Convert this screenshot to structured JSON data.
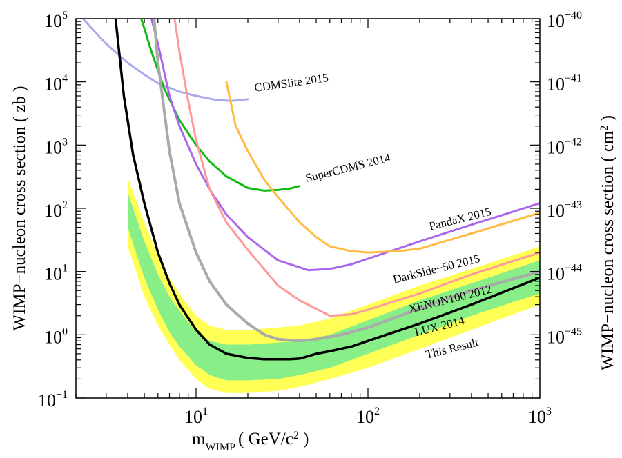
{
  "chart_data": {
    "type": "line",
    "xscale": "log",
    "yscale": "log",
    "xlim": [
      2,
      1000
    ],
    "ylim": [
      0.1,
      100000
    ],
    "grid": false,
    "x_ticks": [
      {
        "value": 10,
        "base": "10",
        "exp": "1"
      },
      {
        "value": 100,
        "base": "10",
        "exp": "2"
      },
      {
        "value": 1000,
        "base": "10",
        "exp": "3"
      }
    ],
    "y_ticks": [
      {
        "value": 0.1,
        "base": "10",
        "exp": "−1"
      },
      {
        "value": 1,
        "base": "10",
        "exp": "0"
      },
      {
        "value": 10,
        "base": "10",
        "exp": "1"
      },
      {
        "value": 100,
        "base": "10",
        "exp": "2"
      },
      {
        "value": 1000,
        "base": "10",
        "exp": "3"
      },
      {
        "value": 10000,
        "base": "10",
        "exp": "4"
      },
      {
        "value": 100000,
        "base": "10",
        "exp": "5"
      }
    ],
    "y2_ticks": [
      {
        "value": 1,
        "base": "10",
        "exp": "−45"
      },
      {
        "value": 10,
        "base": "10",
        "exp": "−44"
      },
      {
        "value": 100,
        "base": "10",
        "exp": "−43"
      },
      {
        "value": 1000,
        "base": "10",
        "exp": "−42"
      },
      {
        "value": 10000,
        "base": "10",
        "exp": "−41"
      },
      {
        "value": 100000,
        "base": "10",
        "exp": "−40"
      }
    ],
    "xlabel": {
      "main": "m",
      "sub": "WIMP",
      "rest": "( GeV/c",
      "sup": "2",
      "end": " )"
    },
    "ylabel": "WIMP−nucleon cross section ( zb )",
    "y2label": {
      "main": "WIMP−nucleon cross section ( cm",
      "sup": "2",
      "end": " )"
    },
    "bands": [
      {
        "name": "",
        "color": "#ffff55",
        "x": [
          4,
          5,
          6,
          7,
          8,
          10,
          12,
          15,
          20,
          30,
          40,
          60,
          100,
          200,
          400,
          1000
        ],
        "lower": [
          25,
          4.0,
          1.4,
          0.7,
          0.4,
          0.2,
          0.14,
          0.12,
          0.12,
          0.13,
          0.15,
          0.2,
          0.3,
          0.6,
          1.2,
          3.0
        ],
        "upper": [
          300,
          60,
          18,
          8,
          4.5,
          2.0,
          1.4,
          1.2,
          1.2,
          1.3,
          1.4,
          1.8,
          3.0,
          6.0,
          11,
          25
        ]
      },
      {
        "name": "",
        "color": "#88ee88",
        "x": [
          4,
          5,
          6,
          7,
          8,
          10,
          12,
          15,
          20,
          30,
          40,
          60,
          100,
          200,
          400,
          1000
        ],
        "lower": [
          50,
          8.0,
          2.5,
          1.1,
          0.65,
          0.33,
          0.23,
          0.19,
          0.19,
          0.2,
          0.23,
          0.3,
          0.5,
          1.0,
          2.0,
          4.5
        ],
        "upper": [
          180,
          30,
          9,
          4,
          2.4,
          1.1,
          0.8,
          0.7,
          0.7,
          0.75,
          0.8,
          1.0,
          1.7,
          3.5,
          6.5,
          15
        ]
      }
    ],
    "series": [
      {
        "name": "CDMSlite 2015",
        "color": "#aaaaee",
        "width": 3,
        "x": [
          2.2,
          2.6,
          3,
          4,
          5,
          6,
          8,
          10,
          13,
          16,
          20
        ],
        "y": [
          100000,
          60000,
          40000,
          20000,
          13000,
          9500,
          7000,
          6000,
          5200,
          5000,
          5300
        ]
      },
      {
        "name": "SuperCDMS 2014",
        "color": "#11bb11",
        "width": 3,
        "x": [
          4.8,
          5.5,
          6.5,
          8,
          10,
          12,
          15,
          20,
          25,
          30,
          35,
          40
        ],
        "y": [
          100000,
          30000,
          8000,
          2500,
          1000,
          550,
          320,
          210,
          190,
          195,
          205,
          225
        ]
      },
      {
        "name": "PandaX 2015",
        "color": "#aa66ee",
        "width": 3,
        "x": [
          5.5,
          6,
          7,
          8,
          10,
          12,
          15,
          20,
          30,
          45,
          60,
          80,
          100,
          200,
          400,
          1000
        ],
        "y": [
          100000,
          40000,
          6000,
          2000,
          500,
          200,
          80,
          35,
          15,
          10.5,
          11,
          13,
          16,
          30,
          55,
          120
        ]
      },
      {
        "name": "DarkSide−50 2015",
        "color": "#ffbb44",
        "width": 3,
        "x": [
          15,
          17,
          20,
          25,
          30,
          40,
          50,
          60,
          80,
          100,
          150,
          200,
          400,
          1000
        ],
        "y": [
          10000,
          2000,
          800,
          280,
          150,
          60,
          35,
          25,
          21,
          20,
          21,
          23,
          40,
          85
        ]
      },
      {
        "name": "XENON100 2012",
        "color": "#ff9999",
        "width": 3,
        "x": [
          7.5,
          8,
          9,
          10,
          12,
          15,
          20,
          30,
          40,
          60,
          80,
          100,
          200,
          400,
          1000
        ],
        "y": [
          100000,
          30000,
          5000,
          1200,
          200,
          60,
          22,
          6,
          3.5,
          2.0,
          2.1,
          2.5,
          4.5,
          9,
          20
        ]
      },
      {
        "name": "LUX 2014",
        "color": "#aaaaaa",
        "width": 4,
        "x": [
          5.7,
          6,
          7,
          8,
          10,
          12,
          15,
          20,
          25,
          30,
          40,
          50,
          70,
          100,
          200,
          400,
          1000
        ],
        "y": [
          100000,
          20000,
          800,
          120,
          20,
          7,
          3,
          1.5,
          1.0,
          0.85,
          0.8,
          0.85,
          1.0,
          1.3,
          2.6,
          5,
          10
        ]
      },
      {
        "name": "This Result",
        "color": "#000000",
        "width": 3.5,
        "x": [
          3.4,
          3.8,
          4.3,
          5,
          6,
          7,
          8,
          10,
          12,
          15,
          20,
          25,
          30,
          35,
          40,
          50,
          60,
          80,
          100,
          200,
          400,
          1000
        ],
        "y": [
          100000,
          6000,
          700,
          120,
          20,
          6.5,
          3.0,
          1.2,
          0.7,
          0.5,
          0.43,
          0.41,
          0.41,
          0.41,
          0.42,
          0.5,
          0.55,
          0.65,
          0.8,
          1.5,
          3.0,
          8.0
        ]
      }
    ],
    "annotations": [
      {
        "text": "CDMSlite 2015",
        "series": "CDMSlite 2015",
        "x": 22,
        "y": 7000,
        "angle": -8
      },
      {
        "text": "SuperCDMS 2014",
        "series": "SuperCDMS 2014",
        "x": 44,
        "y": 260,
        "angle": -14
      },
      {
        "text": "PandaX 2015",
        "series": "PandaX 2015",
        "x": 230,
        "y": 45,
        "angle": -14
      },
      {
        "text": "DarkSide−50 2015",
        "series": "DarkSide−50 2015",
        "x": 142,
        "y": 6.5,
        "angle": -14
      },
      {
        "text": "XENON100 2012",
        "series": "XENON100 2012",
        "x": 175,
        "y": 2.2,
        "angle": -14
      },
      {
        "text": "LUX 2014",
        "series": "LUX 2014",
        "x": 190,
        "y": 0.95,
        "angle": -14
      },
      {
        "text": "This Result",
        "series": "This Result",
        "x": 220,
        "y": 0.42,
        "angle": -14
      }
    ]
  }
}
